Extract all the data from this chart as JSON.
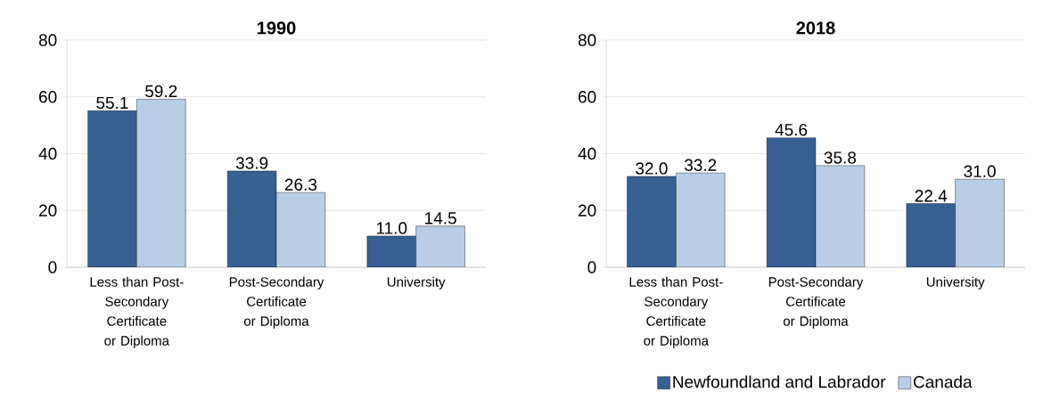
{
  "chart_data": [
    {
      "type": "bar",
      "title": "1990",
      "categories": [
        "Less than Post-Secondary Certificate or Diploma",
        "Post-Secondary Certificate or Diploma",
        "University"
      ],
      "series": [
        {
          "color": "#376092",
          "values": [
            55.1,
            33.9,
            11.0
          ],
          "value_labels": [
            "55.1",
            "33.9",
            "11.0"
          ]
        },
        {
          "color": "#b9cde5",
          "values": [
            59.2,
            26.3,
            14.5
          ],
          "value_labels": [
            "59.2",
            "26.3",
            "14.5"
          ]
        }
      ],
      "ylim": [
        0,
        80
      ],
      "yticks": [
        0,
        20,
        40,
        60,
        80
      ],
      "grid": "y",
      "legend": false
    },
    {
      "type": "bar",
      "title": "2018",
      "categories": [
        "Less than Post-Secondary Certificate or Diploma",
        "Post-Secondary Certificate or Diploma",
        "University"
      ],
      "series": [
        {
          "name": "Newfoundland and Labrador",
          "color": "#376092",
          "values": [
            32.0,
            45.6,
            22.4
          ],
          "value_labels": [
            "32.0",
            "45.6",
            "22.4"
          ]
        },
        {
          "name": "Canada",
          "color": "#b9cde5",
          "values": [
            33.2,
            35.8,
            31.0
          ],
          "value_labels": [
            "33.2",
            "35.8",
            "31.0"
          ]
        }
      ],
      "ylim": [
        0,
        80
      ],
      "yticks": [
        0,
        20,
        40,
        60,
        80
      ],
      "grid": "y",
      "legend": "bottom"
    }
  ]
}
